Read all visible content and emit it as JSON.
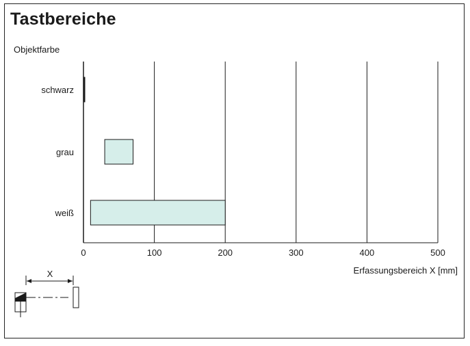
{
  "chart_data": {
    "type": "bar",
    "orientation": "horizontal",
    "title": "Tastbereiche",
    "ylabel": "Objektfarbe",
    "xlabel": "Erfassungsbereich X [mm]",
    "xlim": [
      0,
      500
    ],
    "xticks": [
      0,
      100,
      200,
      300,
      400,
      500
    ],
    "grid": true,
    "categories": [
      "schwarz",
      "grau",
      "weiß"
    ],
    "ranges": [
      {
        "category": "schwarz",
        "start": 0,
        "end": 1
      },
      {
        "category": "grau",
        "start": 30,
        "end": 70
      },
      {
        "category": "weiß",
        "start": 10,
        "end": 200
      }
    ],
    "bar_color": "#d6eeea",
    "diagram_label": "X"
  }
}
